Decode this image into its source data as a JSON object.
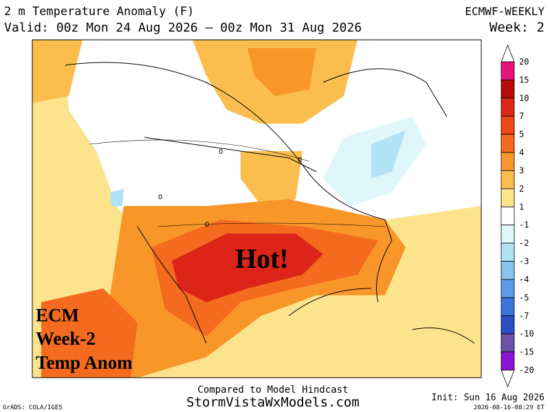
{
  "header": {
    "title": "2 m Temperature Anomaly (F)",
    "valid": "Valid: 00z Mon 24 Aug 2026 — 00z Mon 31 Aug 2026",
    "model": "ECMWF-WEEKLY",
    "week": "Week: 2"
  },
  "map": {
    "annotation": "Hot!",
    "overlay": [
      "ECM",
      "Week-2",
      "Temp Anom"
    ],
    "contour_label": "0"
  },
  "colorbar": {
    "labels": [
      "20",
      "15",
      "10",
      "7",
      "5",
      "4",
      "3",
      "2",
      "1",
      "-1",
      "-2",
      "-3",
      "-4",
      "-5",
      "-7",
      "-10",
      "-15",
      "-20"
    ],
    "colors": [
      "#e8127e",
      "#b80a0a",
      "#dc2418",
      "#ee4614",
      "#f46a1e",
      "#f8962a",
      "#fbbd4e",
      "#fce48c",
      "#ffffff",
      "#dff7fb",
      "#b2e2f6",
      "#88c4ee",
      "#5a9ce6",
      "#3a74dc",
      "#2a4ec4",
      "#6a52a8",
      "#8a14d6"
    ]
  },
  "footer": {
    "compared": "Compared to Model Hindcast",
    "site": "StormVistaWxModels.com",
    "init": "Init: Sun 16 Aug 2026",
    "timestamp": "2026-08-16-08:29 ET",
    "credit": "GrADS: COLA/IGES"
  }
}
